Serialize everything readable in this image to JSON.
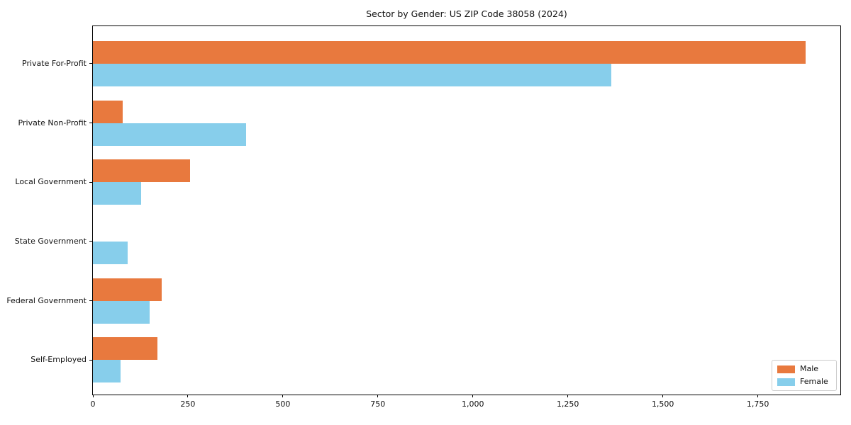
{
  "title": "Sector by Gender: US ZIP Code 38058 (2024)",
  "colors": {
    "male": "#e8793e",
    "female": "#87ceeb",
    "axis": "#000000",
    "legend_border": "#cccccc",
    "background": "#ffffff"
  },
  "legend": {
    "position": "lower right",
    "items": [
      {
        "label": "Male",
        "swatch": "male-color-swatch"
      },
      {
        "label": "Female",
        "swatch": "female-color-swatch"
      }
    ]
  },
  "chart_data": {
    "type": "bar",
    "orientation": "horizontal",
    "title": "Sector by Gender: US ZIP Code 38058 (2024)",
    "xlabel": "",
    "ylabel": "",
    "categories": [
      "Private For-Profit",
      "Private Non-Profit",
      "Local Government",
      "State Government",
      "Federal Government",
      "Self-Employed"
    ],
    "series": [
      {
        "name": "Male",
        "color": "#e8793e",
        "values": [
          1875,
          79,
          255,
          0,
          181,
          170
        ]
      },
      {
        "name": "Female",
        "color": "#87ceeb",
        "values": [
          1365,
          403,
          126,
          92,
          149,
          73
        ]
      }
    ],
    "xlim": [
      0,
      1971
    ],
    "xticks": [
      0,
      250,
      500,
      750,
      1000,
      1250,
      1500,
      1750
    ],
    "xtick_labels": [
      "0",
      "250",
      "500",
      "750",
      "1,000",
      "1,250",
      "1,500",
      "1,750"
    ],
    "grid": false,
    "legend_position": "lower right"
  }
}
